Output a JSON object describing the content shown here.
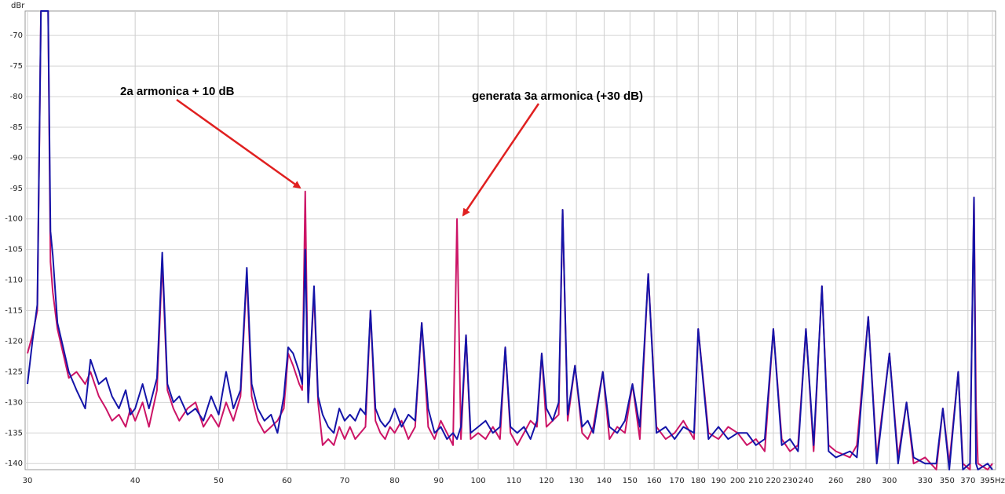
{
  "chart_data": {
    "type": "line",
    "y_label": "dBr",
    "xscale": "log",
    "grid": true,
    "annotations": [
      "2a armonica + 10 dB",
      "generata 3a armonica (+30 dB)"
    ],
    "xlim": [
      30,
      395
    ],
    "ylim": [
      -141,
      -66
    ],
    "xticks": [
      30,
      40,
      50,
      60,
      70,
      80,
      90,
      100,
      110,
      120,
      130,
      140,
      150,
      160,
      170,
      180,
      190,
      200,
      210,
      220,
      230,
      240,
      260,
      280,
      300,
      330,
      350,
      370,
      {
        "value": 395,
        "label": "395Hz"
      }
    ],
    "yticks": [
      -70,
      -75,
      -80,
      -85,
      -90,
      -95,
      -100,
      -105,
      -110,
      -115,
      -120,
      -125,
      -130,
      -135,
      -140
    ],
    "x": [
      30.0,
      30.4,
      30.8,
      31.1,
      31.7,
      31.9,
      32.1,
      32.5,
      33.0,
      33.5,
      34.2,
      35.0,
      35.5,
      36.3,
      37.0,
      37.6,
      38.3,
      39.0,
      39.5,
      40.0,
      40.8,
      41.5,
      42.4,
      43.0,
      43.6,
      44.3,
      45.0,
      46.0,
      47.0,
      48.0,
      49.0,
      50.0,
      51.0,
      52.0,
      53.0,
      53.9,
      54.6,
      55.5,
      56.5,
      57.5,
      58.5,
      59.5,
      60.2,
      61.0,
      62.0,
      62.5,
      63.0,
      63.5,
      64.5,
      65.2,
      66.0,
      67.0,
      68.0,
      69.0,
      70.0,
      71.0,
      72.0,
      73.0,
      74.0,
      75.0,
      76.0,
      77.0,
      78.0,
      79.0,
      80.0,
      81.5,
      83.0,
      84.5,
      86.0,
      87.5,
      89.0,
      90.5,
      92.0,
      93.5,
      94.5,
      95.5,
      96.8,
      98.0,
      100,
      102,
      104,
      106,
      107.5,
      109,
      111,
      113,
      115,
      117,
      118.5,
      120,
      122,
      124,
      125.3,
      127,
      129.5,
      132,
      134,
      136,
      139.5,
      142,
      145,
      148,
      151,
      154,
      157.5,
      161,
      165,
      169,
      173,
      178,
      180,
      185,
      190,
      195,
      200,
      205,
      210,
      215,
      220,
      225,
      230,
      235,
      240,
      245,
      250.5,
      255,
      260,
      270,
      275,
      283.5,
      290,
      300,
      307,
      314,
      320,
      330,
      340,
      346,
      352,
      360.5,
      365,
      372,
      376,
      378,
      380,
      390,
      395
    ],
    "series": [
      {
        "color": "#cc1466",
        "values": [
          -122,
          -119,
          -115,
          -66,
          -66,
          -107,
          -112,
          -118,
          -122,
          -126,
          -125,
          -127,
          -125,
          -129,
          -131,
          -133,
          -132,
          -134,
          -131,
          -133,
          -130,
          -134,
          -128,
          -107,
          -128,
          -131,
          -133,
          -131,
          -130,
          -134,
          -132,
          -134,
          -130,
          -133,
          -129,
          -109,
          -129,
          -133,
          -135,
          -134,
          -133,
          -131,
          -122,
          -124,
          -127,
          -128,
          -95.5,
          -130,
          -112,
          -130,
          -137,
          -136,
          -137,
          -134,
          -136,
          -134,
          -136,
          -135,
          -134,
          -115,
          -133,
          -135,
          -136,
          -134,
          -135,
          -133,
          -136,
          -134,
          -117,
          -134,
          -136,
          -133,
          -135,
          -137,
          -100,
          -136,
          -119,
          -136,
          -135,
          -136,
          -134,
          -136,
          -121,
          -135,
          -137,
          -135,
          -133,
          -134,
          -122,
          -134,
          -133,
          -132,
          -98.5,
          -133,
          -124,
          -135,
          -136,
          -134,
          -125,
          -136,
          -134,
          -135,
          -127,
          -136,
          -109,
          -134,
          -136,
          -135,
          -133,
          -136,
          -118,
          -135,
          -136,
          -134,
          -135,
          -137,
          -136,
          -138,
          -118,
          -136,
          -138,
          -137,
          -118,
          -138,
          -111,
          -137,
          -138,
          -139,
          -137,
          -116,
          -139,
          -122,
          -139,
          -130,
          -140,
          -139,
          -141,
          -131,
          -140,
          -125,
          -140,
          -141,
          -96.5,
          -130,
          -140,
          -141,
          -140
        ]
      },
      {
        "color": "#1414a8",
        "values": [
          -127,
          -120,
          -114,
          -66,
          -66,
          -102,
          -106,
          -117,
          -121,
          -125,
          -128,
          -131,
          -123,
          -127,
          -126,
          -129,
          -131,
          -128,
          -132,
          -131,
          -127,
          -131,
          -126,
          -105.5,
          -127,
          -130,
          -129,
          -132,
          -131,
          -133,
          -129,
          -132,
          -125,
          -131,
          -128,
          -108,
          -127,
          -131,
          -133,
          -132,
          -135,
          -129,
          -121,
          -122,
          -125,
          -127,
          -105,
          -130,
          -111,
          -129,
          -132,
          -134,
          -135,
          -131,
          -133,
          -132,
          -133,
          -131,
          -132,
          -115,
          -131,
          -133,
          -134,
          -133,
          -131,
          -134,
          -132,
          -133,
          -117,
          -131,
          -135,
          -134,
          -136,
          -135,
          -136,
          -134,
          -119,
          -135,
          -134,
          -133,
          -135,
          -134,
          -121,
          -134,
          -135,
          -134,
          -136,
          -133,
          -122,
          -131,
          -133,
          -130,
          -98.5,
          -132,
          -124,
          -134,
          -133,
          -135,
          -125,
          -134,
          -135,
          -133,
          -127,
          -134,
          -109,
          -135,
          -134,
          -136,
          -134,
          -135,
          -118,
          -136,
          -134,
          -136,
          -135,
          -135,
          -137,
          -136,
          -118,
          -137,
          -136,
          -138,
          -118,
          -137,
          -111,
          -138,
          -139,
          -138,
          -139,
          -116,
          -140,
          -122,
          -140,
          -130,
          -139,
          -140,
          -140,
          -131,
          -141,
          -125,
          -141,
          -140,
          -96.5,
          -140,
          -141,
          -140,
          -141
        ]
      }
    ]
  }
}
